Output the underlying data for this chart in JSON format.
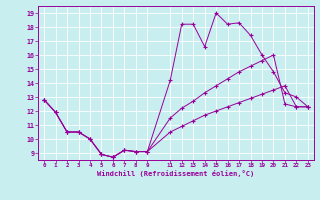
{
  "xlabel": "Windchill (Refroidissement éolien,°C)",
  "bg_color": "#c8eef0",
  "line_color": "#990099",
  "xlim": [
    -0.5,
    23.5
  ],
  "ylim": [
    8.5,
    19.5
  ],
  "xtick_positions": [
    0,
    1,
    2,
    3,
    4,
    5,
    6,
    7,
    8,
    9,
    11,
    12,
    13,
    14,
    15,
    16,
    17,
    18,
    19,
    20,
    21,
    22,
    23
  ],
  "xtick_labels": [
    "0",
    "1",
    "2",
    "3",
    "4",
    "5",
    "6",
    "7",
    "8",
    "9",
    "11",
    "12",
    "13",
    "14",
    "15",
    "16",
    "17",
    "18",
    "19",
    "20",
    "21",
    "22",
    "23"
  ],
  "yticks": [
    9,
    10,
    11,
    12,
    13,
    14,
    15,
    16,
    17,
    18,
    19
  ],
  "grid_color": "#ffffff",
  "series1_x": [
    0,
    1,
    2,
    3,
    4,
    5,
    6,
    7,
    8,
    9,
    11,
    12,
    13,
    14,
    15,
    16,
    17,
    18,
    19,
    20,
    21,
    22,
    23
  ],
  "series1_y": [
    12.8,
    11.9,
    10.5,
    10.5,
    10.0,
    8.9,
    8.7,
    9.2,
    9.1,
    9.1,
    14.2,
    18.2,
    18.2,
    16.6,
    19.0,
    18.2,
    18.3,
    17.4,
    16.0,
    14.8,
    13.3,
    13.0,
    12.3
  ],
  "series2_x": [
    0,
    1,
    2,
    3,
    4,
    5,
    6,
    7,
    8,
    9,
    11,
    12,
    13,
    14,
    15,
    16,
    17,
    18,
    19,
    20,
    21,
    22,
    23
  ],
  "series2_y": [
    12.8,
    11.9,
    10.5,
    10.5,
    10.0,
    8.9,
    8.7,
    9.2,
    9.1,
    9.1,
    11.5,
    12.2,
    12.7,
    13.3,
    13.8,
    14.3,
    14.8,
    15.2,
    15.6,
    16.0,
    12.5,
    12.3,
    12.3
  ],
  "series3_x": [
    0,
    1,
    2,
    3,
    4,
    5,
    6,
    7,
    8,
    9,
    11,
    12,
    13,
    14,
    15,
    16,
    17,
    18,
    19,
    20,
    21,
    22,
    23
  ],
  "series3_y": [
    12.8,
    11.9,
    10.5,
    10.5,
    10.0,
    8.9,
    8.7,
    9.2,
    9.1,
    9.1,
    10.5,
    10.9,
    11.3,
    11.7,
    12.0,
    12.3,
    12.6,
    12.9,
    13.2,
    13.5,
    13.8,
    12.3,
    12.3
  ]
}
